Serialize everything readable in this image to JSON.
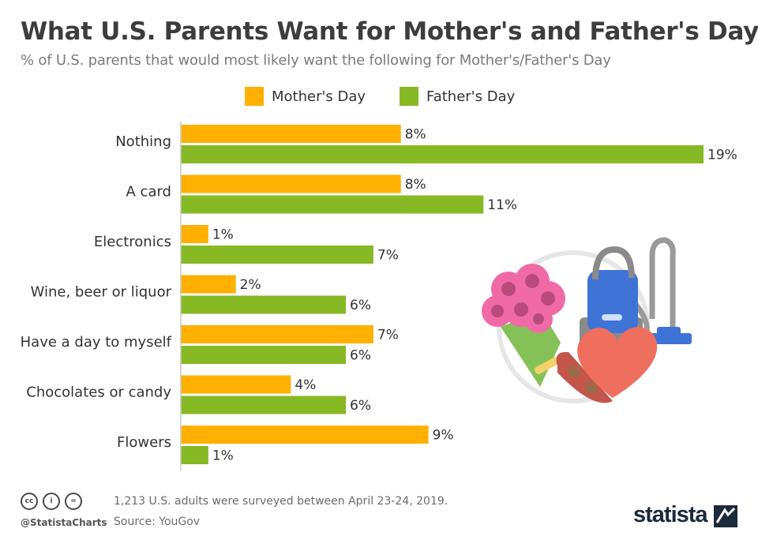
{
  "header": {
    "title": "What U.S. Parents Want for Mother's and Father's Day",
    "subtitle": "% of U.S. parents that would most likely want the following for Mother's/Father's Day"
  },
  "colors": {
    "mothers": "#ffb000",
    "fathers": "#86b923",
    "axis": "#c8c8c8",
    "text": "#333333"
  },
  "chart_data": {
    "type": "bar",
    "orientation": "horizontal",
    "categories": [
      "Nothing",
      "A card",
      "Electronics",
      "Wine, beer or liquor",
      "Have a day to myself",
      "Chocolates or candy",
      "Flowers"
    ],
    "series": [
      {
        "name": "Mother's Day",
        "values": [
          8,
          8,
          1,
          2,
          7,
          4,
          9
        ]
      },
      {
        "name": "Father's Day",
        "values": [
          19,
          11,
          7,
          6,
          6,
          6,
          1
        ]
      }
    ],
    "value_suffix": "%",
    "xlim": [
      0,
      19
    ],
    "legend": "top-center",
    "grid": false
  },
  "footer": {
    "note": "1,213 U.S. adults were surveyed between April 23-24, 2019.",
    "source": "Source: YouGov",
    "handle": "@StatistaCharts",
    "brand": "statista",
    "license_icons": [
      "cc",
      "i",
      "="
    ]
  },
  "illustration": {
    "icons": [
      "flower-bouquet-icon",
      "vacuum-cleaner-icon",
      "heart-chocolate-box-icon"
    ]
  }
}
